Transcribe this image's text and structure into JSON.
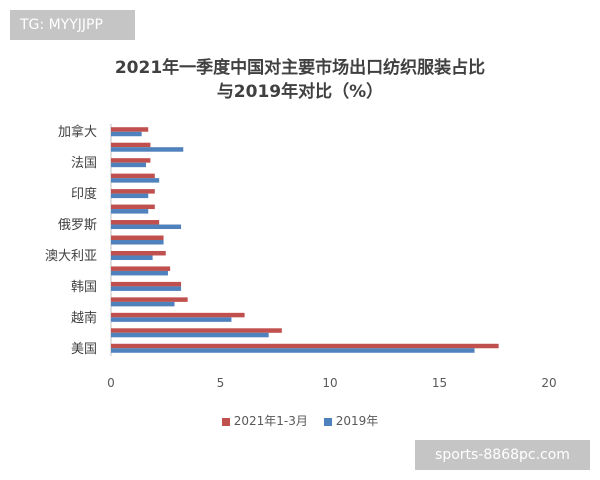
{
  "watermarks": {
    "top_left": "TG: MYYJJPP",
    "bottom_right": "sports-8868pc.com"
  },
  "colors": {
    "series_2021": "#c0504d",
    "series_2019": "#4f81bd"
  },
  "chart_data": {
    "type": "bar",
    "orientation": "horizontal",
    "title": "2021年一季度中国对主要市场出口纺织服装占比",
    "subtitle": "与2019年对比（%）",
    "xlabel": "",
    "ylabel": "",
    "xlim": [
      0,
      20
    ],
    "x_ticks": [
      0,
      5,
      10,
      15,
      20
    ],
    "grid": false,
    "legend_position": "bottom",
    "categories": [
      "美国",
      "",
      "越南",
      "",
      "韩国",
      "",
      "澳大利亚",
      "",
      "俄罗斯",
      "",
      "印度",
      "",
      "法国",
      "",
      "加拿大"
    ],
    "series": [
      {
        "name": "2021年1-3月",
        "values": [
          17.7,
          7.8,
          6.1,
          3.5,
          3.2,
          2.7,
          2.5,
          2.4,
          2.2,
          2.0,
          2.0,
          2.0,
          1.8,
          1.8,
          1.7
        ]
      },
      {
        "name": "2019年",
        "values": [
          16.6,
          7.2,
          5.5,
          2.9,
          3.2,
          2.6,
          1.9,
          2.4,
          3.2,
          1.7,
          1.7,
          2.2,
          1.6,
          3.3,
          1.4
        ]
      }
    ]
  }
}
